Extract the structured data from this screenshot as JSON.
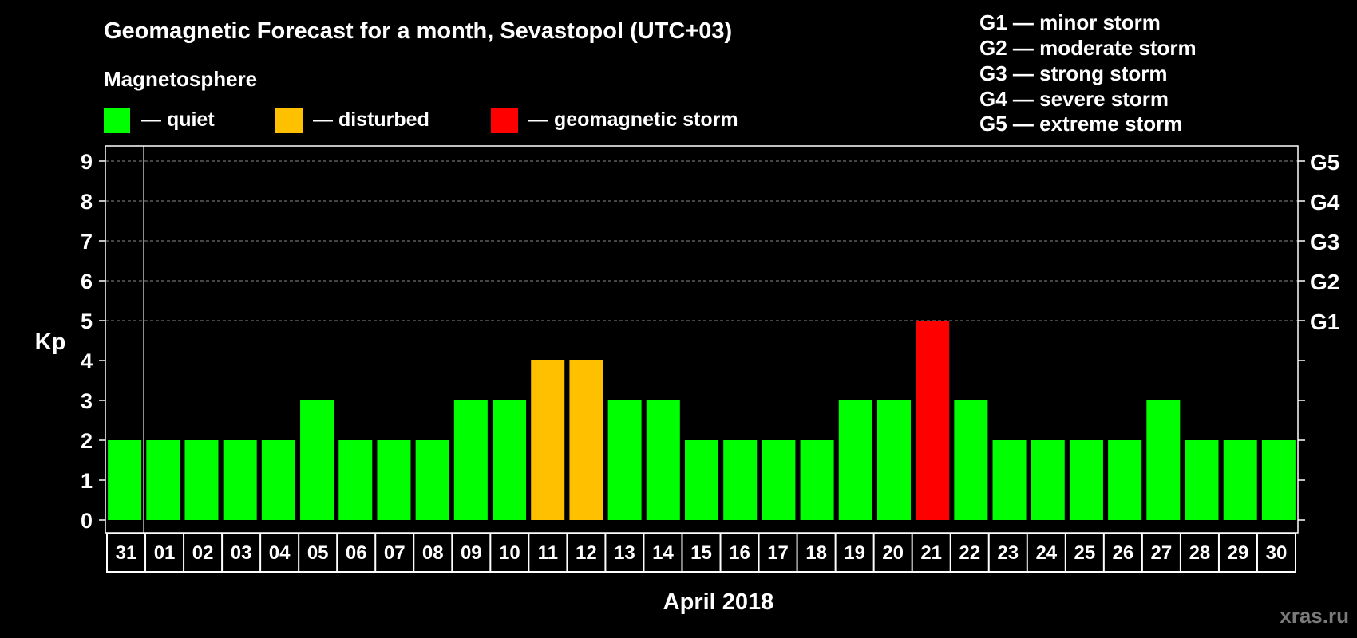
{
  "chart_data": {
    "type": "bar",
    "title": "Geomagnetic Forecast for a month, Sevastopol (UTC+03)",
    "subtitle": "Magnetosphere",
    "xlabel": "April 2018",
    "ylabel": "Kp",
    "ylim": [
      0,
      9
    ],
    "yticks": [
      "0",
      "1",
      "2",
      "3",
      "4",
      "5",
      "6",
      "7",
      "8",
      "9"
    ],
    "right_ticks": [
      {
        "value": 5,
        "label": "G1"
      },
      {
        "value": 6,
        "label": "G2"
      },
      {
        "value": 7,
        "label": "G3"
      },
      {
        "value": 8,
        "label": "G4"
      },
      {
        "value": 9,
        "label": "G5"
      }
    ],
    "categories": [
      "31",
      "01",
      "02",
      "03",
      "04",
      "05",
      "06",
      "07",
      "08",
      "09",
      "10",
      "11",
      "12",
      "13",
      "14",
      "15",
      "16",
      "17",
      "18",
      "19",
      "20",
      "21",
      "22",
      "23",
      "24",
      "25",
      "26",
      "27",
      "28",
      "29",
      "30"
    ],
    "values": [
      2,
      2,
      2,
      2,
      2,
      3,
      2,
      2,
      2,
      3,
      3,
      4,
      4,
      3,
      3,
      2,
      2,
      2,
      2,
      3,
      3,
      5,
      3,
      2,
      2,
      2,
      2,
      3,
      2,
      2,
      2
    ],
    "status": [
      "quiet",
      "quiet",
      "quiet",
      "quiet",
      "quiet",
      "quiet",
      "quiet",
      "quiet",
      "quiet",
      "quiet",
      "quiet",
      "disturbed",
      "disturbed",
      "quiet",
      "quiet",
      "quiet",
      "quiet",
      "quiet",
      "quiet",
      "quiet",
      "quiet",
      "storm",
      "quiet",
      "quiet",
      "quiet",
      "quiet",
      "quiet",
      "quiet",
      "quiet",
      "quiet",
      "quiet"
    ],
    "legend": [
      {
        "key": "quiet",
        "label": "— quiet",
        "color": "#00ff00"
      },
      {
        "key": "disturbed",
        "label": "— disturbed",
        "color": "#ffc000"
      },
      {
        "key": "storm",
        "label": "— geomagnetic storm",
        "color": "#ff0000"
      }
    ],
    "storm_scale": [
      "G1 — minor storm",
      "G2 — moderate storm",
      "G3 — strong storm",
      "G4 — severe storm",
      "G5 — extreme storm"
    ],
    "grid_dashed_from": 5
  },
  "watermark": "xras.ru"
}
